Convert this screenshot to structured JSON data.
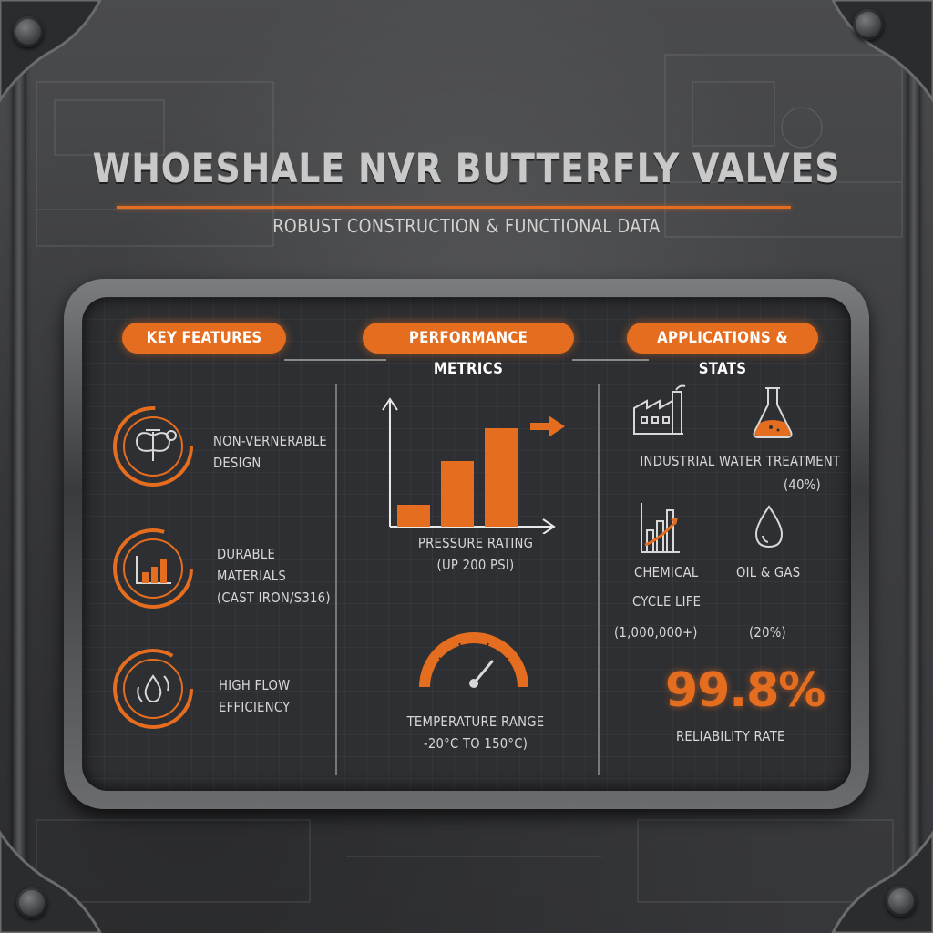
{
  "header": {
    "title": "WHOESHALE NVR BUTTERFLY  VALVES",
    "subtitle": "ROBUST CONSTRUCTION & FUNCTIONAL DATA"
  },
  "sections": {
    "features": {
      "heading": "KEY FEATURES",
      "items": [
        {
          "icon": "butterfly-valve-icon",
          "line1": "NON-VERNERABLE",
          "line2": "DESIGN"
        },
        {
          "icon": "bar-chart-icon",
          "line1": "DURABLE",
          "line2": "MATERIALS",
          "line3": "(CAST IRON/S316)"
        },
        {
          "icon": "water-drop-cycle-icon",
          "line1": "HIGH FLOW",
          "line2": "EFFICIENCY"
        }
      ]
    },
    "performance": {
      "heading": "PERFORMANCE METRICS",
      "pressure": {
        "line1": "PRESSURE RATING",
        "line2": "(UP 200 PSI)"
      },
      "temperature": {
        "line1": "TEMPERATURE RANGE",
        "line2": "-20°C TO 150°C)"
      }
    },
    "applications": {
      "heading": "APPLICATIONS & STATS",
      "water": {
        "line1": "INDUSTRIAL WATER TREATMENT",
        "line2": "(40%)"
      },
      "chemical": "CHEMICAL",
      "oil_gas": "OIL & GAS",
      "cycle_life": {
        "label": "CYCLE LIFE",
        "value": "(1,000,000+)"
      },
      "oil_gas_share": "(20%)",
      "reliability": {
        "value": "99.8%",
        "label": "RELIABILITY RATE"
      }
    }
  },
  "chart_data": {
    "type": "bar",
    "categories": [
      "",
      "",
      ""
    ],
    "values": [
      1,
      3,
      4.5
    ],
    "ylim": [
      0,
      5.5
    ]
  },
  "colors": {
    "accent": "#e46d1f",
    "panel": "#2e2f32",
    "text": "#d8d8d8"
  }
}
